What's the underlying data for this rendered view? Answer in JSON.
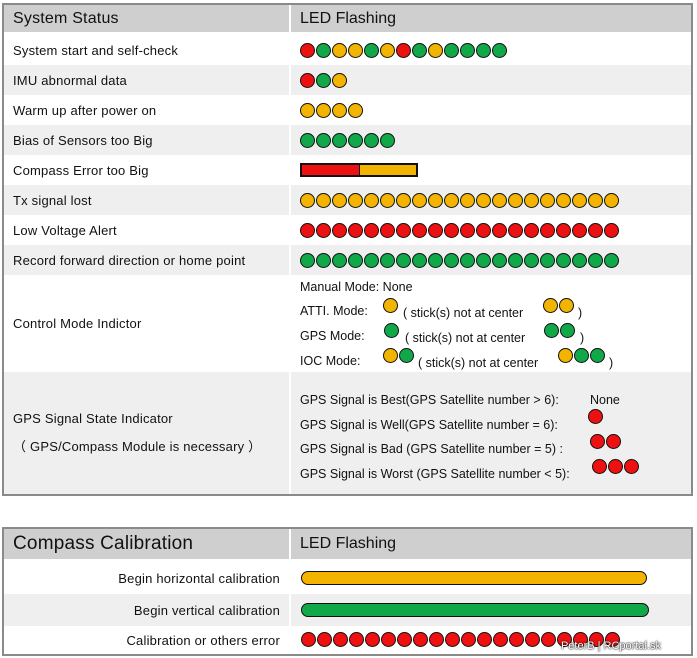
{
  "system_status": {
    "header_left": "System Status",
    "header_right": "LED Flashing",
    "rows": [
      {
        "label": "System start and self-check",
        "leds": [
          "red",
          "green",
          "yellow",
          "yellow",
          "green",
          "yellow",
          "red",
          "green",
          "yellow",
          "green",
          "green",
          "green",
          "green"
        ]
      },
      {
        "label": "IMU  abnormal  data",
        "leds": [
          "red",
          "green",
          "yellow"
        ]
      },
      {
        "label": "Warm  up  after  power  on",
        "leds": [
          "yellow",
          "yellow",
          "yellow",
          "yellow"
        ]
      },
      {
        "label": "Bias of Sensors too Big",
        "leds": [
          "green",
          "green",
          "green",
          "green",
          "green",
          "green"
        ]
      },
      {
        "label": "Compass  Error  too  Big",
        "bar": [
          "red",
          "yellow"
        ]
      },
      {
        "label": "Tx  signal  lost",
        "leds": [
          "yellow",
          "yellow",
          "yellow",
          "yellow",
          "yellow",
          "yellow",
          "yellow",
          "yellow",
          "yellow",
          "yellow",
          "yellow",
          "yellow",
          "yellow",
          "yellow",
          "yellow",
          "yellow",
          "yellow",
          "yellow",
          "yellow",
          "yellow"
        ]
      },
      {
        "label": "Low  Voltage  Alert",
        "leds": [
          "red",
          "red",
          "red",
          "red",
          "red",
          "red",
          "red",
          "red",
          "red",
          "red",
          "red",
          "red",
          "red",
          "red",
          "red",
          "red",
          "red",
          "red",
          "red",
          "red"
        ]
      },
      {
        "label": "Record  forward  direction  or  home  point",
        "leds": [
          "green",
          "green",
          "green",
          "green",
          "green",
          "green",
          "green",
          "green",
          "green",
          "green",
          "green",
          "green",
          "green",
          "green",
          "green",
          "green",
          "green",
          "green",
          "green",
          "green"
        ]
      }
    ],
    "control_mode": {
      "label": "Control Mode Indictor",
      "manual": "Manual Mode: None",
      "atti_label": "ATTI. Mode:",
      "atti_center": [
        "yellow"
      ],
      "atti_text": "( stick(s) not at center",
      "atti_off": [
        "yellow",
        "yellow"
      ],
      "gps_label": "GPS Mode:",
      "gps_center": [
        "green"
      ],
      "gps_text": "( stick(s) not at center",
      "gps_off": [
        "green",
        "green"
      ],
      "ioc_label": "IOC Mode:",
      "ioc_center": [
        "yellow",
        "green"
      ],
      "ioc_text": "( stick(s) not at center",
      "ioc_off": [
        "yellow",
        "green",
        "green"
      ],
      "close_paren": ")"
    },
    "gps_signal": {
      "label": "GPS Signal State Indicator",
      "label2": "（ GPS/Compass Module is necessary ）",
      "best": "GPS Signal is Best(GPS Satellite number > 6):",
      "best_value": "None",
      "well": "GPS Signal is Well(GPS Satellite number = 6):",
      "well_leds": [
        "red"
      ],
      "bad": "GPS Signal is Bad (GPS Satellite number = 5) :",
      "bad_leds": [
        "red",
        "red"
      ],
      "worst": "GPS Signal is Worst (GPS Satellite number < 5):",
      "worst_leds": [
        "red",
        "red",
        "red"
      ]
    }
  },
  "compass_calibration": {
    "header_left": "Compass Calibration",
    "header_right": "LED Flashing",
    "rows": [
      {
        "label": "Begin horizontal calibration",
        "bar_color": "yellow"
      },
      {
        "label": "Begin vertical calibration",
        "bar_color": "green"
      },
      {
        "label": "Calibration or others error",
        "leds": [
          "red",
          "red",
          "red",
          "red",
          "red",
          "red",
          "red",
          "red",
          "red",
          "red",
          "red",
          "red",
          "red",
          "red",
          "red",
          "red",
          "red",
          "red",
          "red",
          "red"
        ]
      }
    ]
  },
  "watermark": "PeterB | RCportal.sk",
  "colors": {
    "red": "#ee1111",
    "green": "#11a84a",
    "yellow": "#f3b400"
  }
}
